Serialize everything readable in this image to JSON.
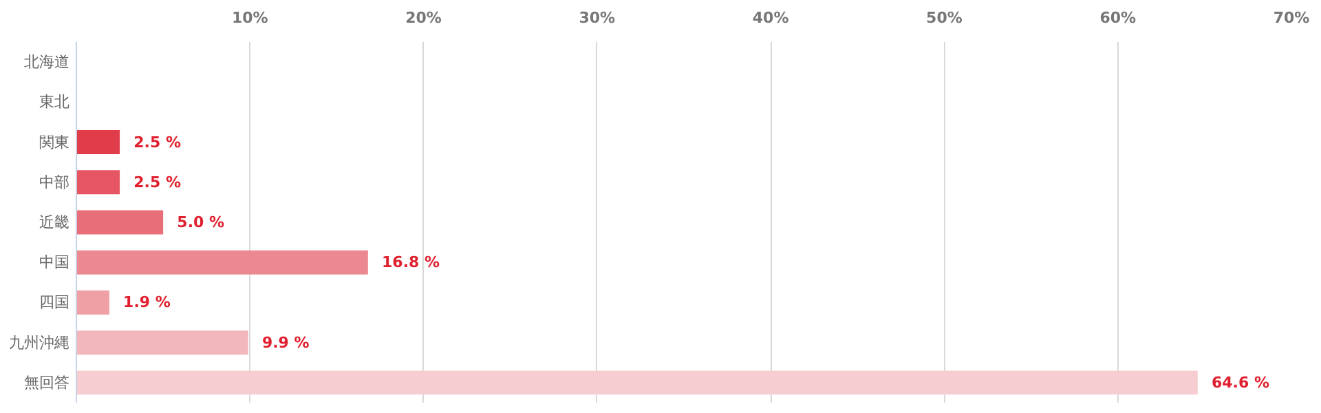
{
  "chart_data": {
    "type": "bar",
    "orientation": "horizontal",
    "categories": [
      "北海道",
      "東北",
      "関東",
      "中部",
      "近畿",
      "中国",
      "四国",
      "九州沖縄",
      "無回答"
    ],
    "values": [
      null,
      null,
      2.5,
      2.5,
      5.0,
      16.8,
      1.9,
      9.9,
      64.6
    ],
    "colors": [
      null,
      null,
      "#e03c4a",
      "#e55562",
      "#e86f79",
      "#ec888f",
      "#efa0a5",
      "#f2b7ba",
      "#f6cdd1"
    ],
    "value_labels": [
      null,
      null,
      "2.5 %",
      "2.5 %",
      "5.0 %",
      "16.8 %",
      "1.9 %",
      "9.9 %",
      "64.6 %"
    ],
    "xlim": [
      0,
      70
    ],
    "xticks": [
      {
        "value": 0,
        "label": null
      },
      {
        "value": 10,
        "label": "10%"
      },
      {
        "value": 20,
        "label": "20%"
      },
      {
        "value": 30,
        "label": "30%"
      },
      {
        "value": 40,
        "label": "40%"
      },
      {
        "value": 50,
        "label": "50%"
      },
      {
        "value": 60,
        "label": "60%"
      },
      {
        "value": 70,
        "label": "70%"
      }
    ],
    "grid": "x"
  }
}
